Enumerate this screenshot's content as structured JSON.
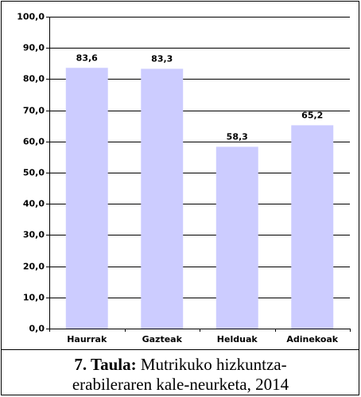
{
  "chart_data": {
    "type": "bar",
    "categories": [
      "Haurrak",
      "Gazteak",
      "Helduak",
      "Adinekoak"
    ],
    "values": [
      83.6,
      83.3,
      58.3,
      65.2
    ],
    "value_labels": [
      "83,6",
      "83,3",
      "58,3",
      "65,2"
    ],
    "color": "#ccccff",
    "ylim": [
      0,
      100
    ],
    "yticks": [
      {
        "value": 0,
        "label": "0,0"
      },
      {
        "value": 10,
        "label": "10,0"
      },
      {
        "value": 20,
        "label": "20,0"
      },
      {
        "value": 30,
        "label": "30,0"
      },
      {
        "value": 40,
        "label": "40,0"
      },
      {
        "value": 50,
        "label": "50,0"
      },
      {
        "value": 60,
        "label": "60,0"
      },
      {
        "value": 70,
        "label": "70,0"
      },
      {
        "value": 80,
        "label": "80,0"
      },
      {
        "value": 90,
        "label": "90,0"
      },
      {
        "value": 100,
        "label": "100,0"
      }
    ],
    "grid": true
  },
  "caption": {
    "label": "7. Taula:",
    "lines": [
      "Mutrikuko hizkuntza-",
      "erabileraren kale-neurketa, 2014"
    ]
  }
}
